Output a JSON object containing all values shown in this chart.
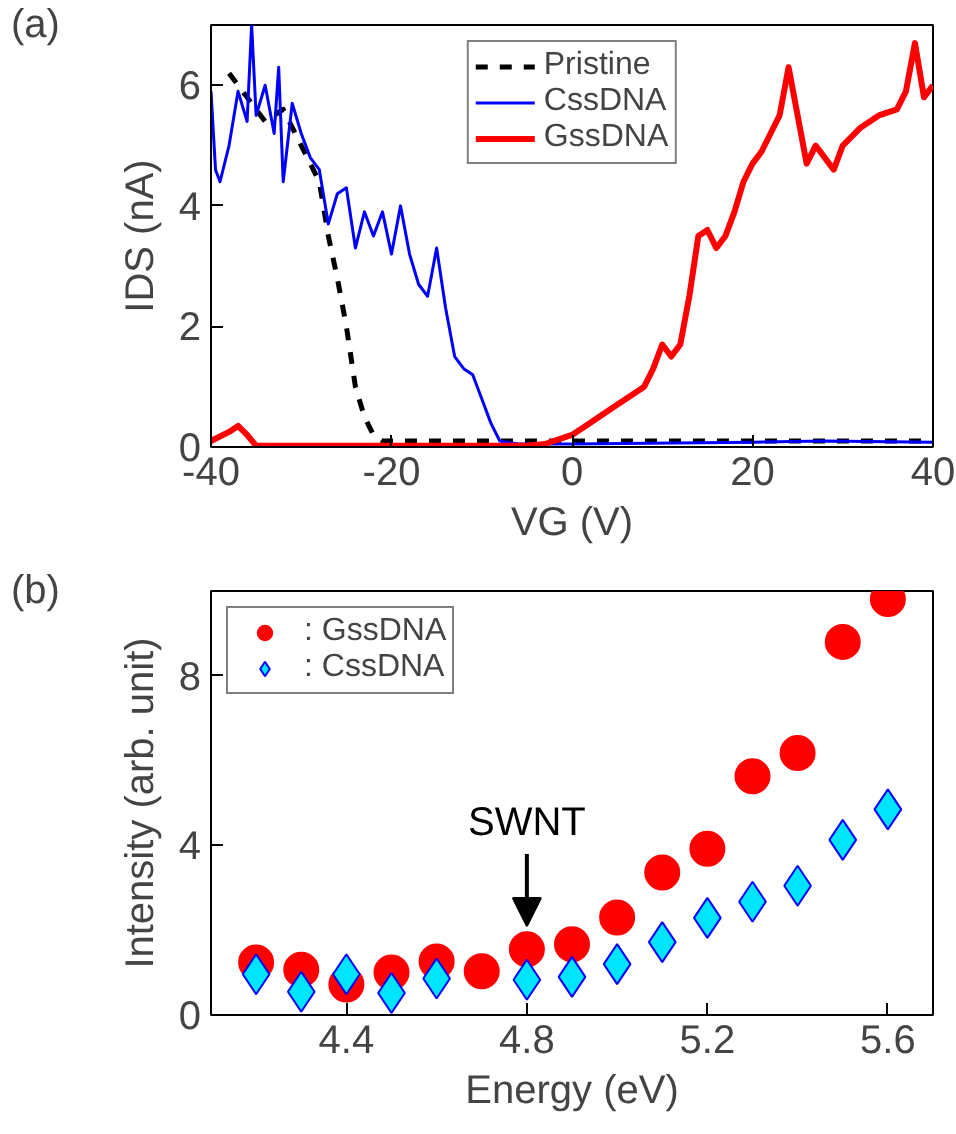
{
  "chart_data": [
    {
      "type": "line",
      "xlabel": "VG (V)",
      "ylabel": "IDS (nA)",
      "xlim": [
        -40,
        40
      ],
      "ylim": [
        0,
        7
      ],
      "xticks": [
        -40,
        -20,
        0,
        20,
        40
      ],
      "yticks": [
        0,
        2,
        4,
        6
      ],
      "grid": false,
      "legend": "top",
      "annotations": [
        "(a)"
      ],
      "series": [
        {
          "name": "Pristine",
          "color": "#000000",
          "line_style": "dashed",
          "x": [
            -38,
            -36,
            -34,
            -32,
            -30,
            -28,
            -27,
            -26,
            -25,
            -24,
            -23,
            -22,
            -21,
            -15,
            0,
            20,
            40
          ],
          "values": [
            6.2,
            5.8,
            5.4,
            5.6,
            5.0,
            4.4,
            3.5,
            2.8,
            2.0,
            1.0,
            0.5,
            0.2,
            0.1,
            0.1,
            0.1,
            0.1,
            0.1
          ]
        },
        {
          "name": "CssDNA",
          "color": "#0000ff",
          "line_style": "solid",
          "x": [
            -40,
            -39.5,
            -39,
            -38,
            -37,
            -36,
            -35.5,
            -35,
            -34,
            -33,
            -32.5,
            -32,
            -31,
            -30,
            -29,
            -28,
            -27,
            -26,
            -25,
            -24,
            -23,
            -22,
            -21,
            -20,
            -19,
            -18,
            -17,
            -16,
            -15,
            -14,
            -13,
            -12,
            -11,
            -10,
            -9,
            -8,
            -6,
            0,
            20,
            28,
            40
          ],
          "values": [
            5.9,
            4.6,
            4.4,
            5.0,
            5.9,
            5.4,
            7.0,
            5.5,
            6.0,
            5.2,
            6.3,
            4.4,
            5.7,
            5.2,
            4.8,
            4.6,
            3.7,
            4.2,
            4.3,
            3.3,
            3.9,
            3.5,
            3.9,
            3.2,
            4.0,
            3.2,
            2.7,
            2.5,
            3.3,
            2.3,
            1.5,
            1.3,
            1.2,
            0.8,
            0.4,
            0.1,
            0.05,
            0.05,
            0.08,
            0.1,
            0.08
          ]
        },
        {
          "name": "GssDNA",
          "color": "#ff0000",
          "line_style": "solid",
          "x": [
            -40,
            -38,
            -37,
            -36,
            -35,
            -20,
            -5,
            -3,
            0,
            2,
            4,
            6,
            8,
            9,
            10,
            11,
            12,
            13,
            14,
            15,
            16,
            17,
            18,
            19,
            20,
            21,
            22,
            23,
            24,
            25,
            26,
            27,
            28,
            29,
            30,
            32,
            34,
            36,
            37,
            38,
            39,
            40
          ],
          "values": [
            0.1,
            0.25,
            0.35,
            0.2,
            0.02,
            0.02,
            0.02,
            0.05,
            0.2,
            0.4,
            0.6,
            0.8,
            1.0,
            1.3,
            1.7,
            1.5,
            1.7,
            2.5,
            3.5,
            3.6,
            3.3,
            3.5,
            3.9,
            4.4,
            4.7,
            4.9,
            5.2,
            5.5,
            6.3,
            5.5,
            4.7,
            5.0,
            4.8,
            4.6,
            5.0,
            5.3,
            5.5,
            5.6,
            5.9,
            6.7,
            5.8,
            6.0
          ]
        }
      ]
    },
    {
      "type": "scatter",
      "xlabel": "Energy (eV)",
      "ylabel": "Intensity (arb. unit)",
      "xlim": [
        4.1,
        5.7
      ],
      "ylim": [
        0,
        10
      ],
      "xticks": [
        4.4,
        4.8,
        5.2,
        5.6
      ],
      "yticks": [
        0,
        4,
        8
      ],
      "grid": false,
      "legend": "top left",
      "x": [
        4.2,
        4.3,
        4.4,
        4.5,
        4.6,
        4.7,
        4.8,
        4.9,
        5.0,
        5.1,
        5.2,
        5.3,
        5.4,
        5.5,
        5.6
      ],
      "annotations": [
        "(b)",
        {
          "text": "SWNT",
          "x": 4.8,
          "y": 2.1
        }
      ],
      "series": [
        {
          "name": ": GssDNA",
          "color": "#ff0000",
          "marker": "circle",
          "values": [
            1.24,
            1.07,
            0.72,
            1.0,
            1.26,
            1.03,
            1.55,
            1.67,
            2.3,
            3.36,
            3.92,
            5.63,
            6.18,
            8.8,
            9.81
          ]
        },
        {
          "name": ": CssDNA",
          "color": "#00e5ff",
          "marker": "diamond",
          "values": [
            0.96,
            0.55,
            0.96,
            0.52,
            0.86,
            null,
            0.83,
            0.9,
            1.2,
            1.72,
            2.29,
            2.67,
            3.05,
            4.13,
            4.85
          ]
        }
      ]
    }
  ]
}
